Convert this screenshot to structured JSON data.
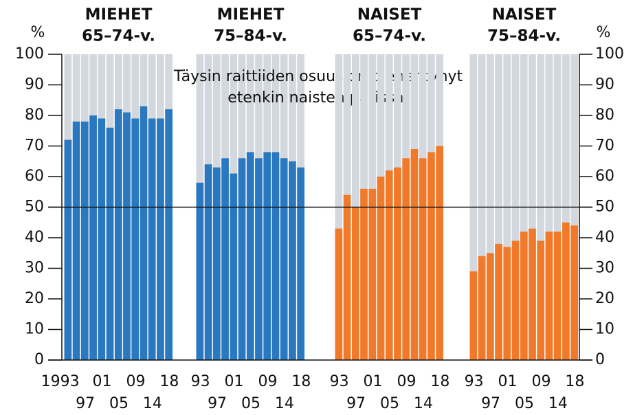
{
  "chart_data": [
    {
      "type": "bar",
      "title": [
        "MIEHET",
        "65–74-v."
      ],
      "ylabel": "%",
      "reference_line": 50,
      "categories": [
        "1993",
        null,
        "97",
        null,
        "01",
        null,
        "05",
        null,
        "09",
        null,
        "14",
        null,
        "18"
      ],
      "values": [
        72,
        78,
        78,
        80,
        79,
        76,
        82,
        81,
        79,
        83,
        79,
        79,
        82
      ],
      "color": "#2a78c0",
      "ylim": [
        0,
        100
      ],
      "yticks": [
        0,
        10,
        20,
        30,
        40,
        50,
        60,
        70,
        80,
        90,
        100
      ]
    },
    {
      "type": "bar",
      "title": [
        "MIEHET",
        "75–84-v."
      ],
      "annotation": [
        "Täysin raittiiden osuus on pienentynyt",
        "etenkin naisten parissa."
      ],
      "categories": [
        "93",
        null,
        "97",
        null,
        "01",
        null,
        "05",
        null,
        "09",
        null,
        "14",
        null,
        "18"
      ],
      "values": [
        58,
        64,
        63,
        66,
        61,
        66,
        68,
        66,
        68,
        68,
        66,
        65,
        63
      ],
      "color": "#2a78c0",
      "ylim": [
        0,
        100
      ],
      "yticks": [
        0,
        10,
        20,
        30,
        40,
        50,
        60,
        70,
        80,
        90,
        100
      ]
    },
    {
      "type": "bar",
      "title": [
        "NAISET",
        "65–74-v."
      ],
      "categories": [
        "93",
        null,
        "97",
        null,
        "01",
        null,
        "05",
        null,
        "09",
        null,
        "14",
        null,
        "18"
      ],
      "values": [
        43,
        54,
        50,
        56,
        56,
        60,
        62,
        63,
        66,
        69,
        66,
        68,
        70
      ],
      "color": "#f07a2a",
      "ylim": [
        0,
        100
      ],
      "yticks": [
        0,
        10,
        20,
        30,
        40,
        50,
        60,
        70,
        80,
        90,
        100
      ]
    },
    {
      "type": "bar",
      "title": [
        "NAISET",
        "75–84-v."
      ],
      "ylabel": "%",
      "categories": [
        "93",
        null,
        "97",
        null,
        "01",
        null,
        "05",
        null,
        "09",
        null,
        "14",
        null,
        "18"
      ],
      "values": [
        29,
        34,
        35,
        38,
        37,
        39,
        42,
        43,
        39,
        42,
        42,
        45,
        44
      ],
      "color": "#f07a2a",
      "ylim": [
        0,
        100
      ],
      "yticks": [
        0,
        10,
        20,
        30,
        40,
        50,
        60,
        70,
        80,
        90,
        100
      ]
    }
  ]
}
